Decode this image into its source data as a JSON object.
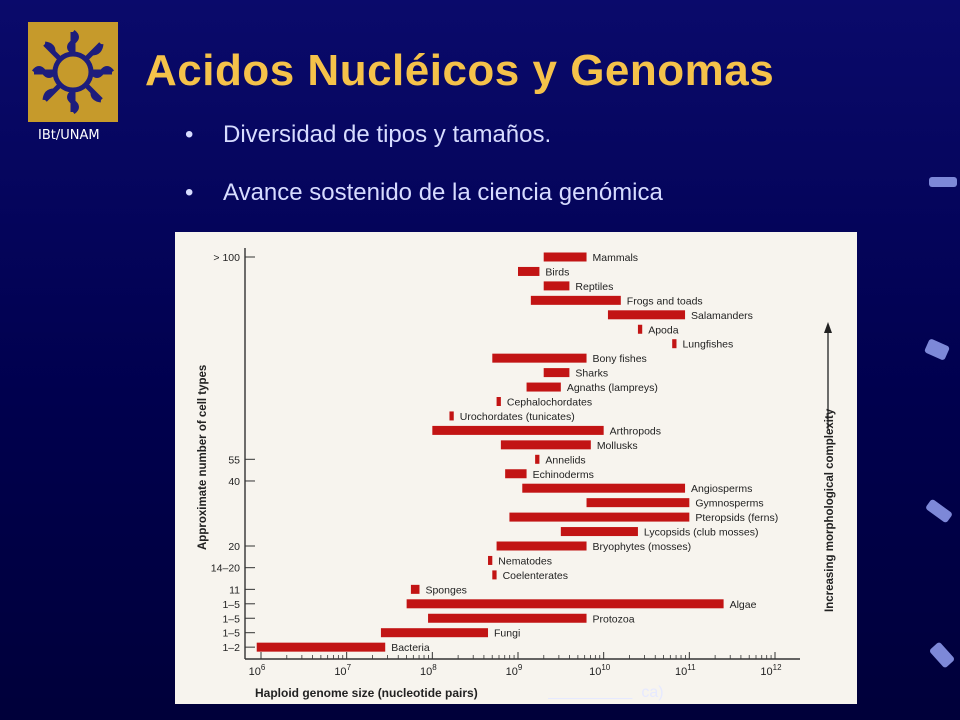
{
  "slide": {
    "logo_text": "IBt/UNAM",
    "title": "Acidos Nucléicos y Genomas",
    "bullets": [
      "Diversidad de tipos y tamaños.",
      "Avance sostenido de la ciencia genómica"
    ],
    "caption_visible_end": "ca)"
  },
  "colors": {
    "background": "#00004e",
    "title": "#f5c24a",
    "bullet_text": "#d7dcff",
    "bar": "#c21414",
    "panel": "#f7f4ee"
  },
  "chart_data": {
    "type": "bar",
    "orientation": "horizontal-range",
    "xlabel": "Haploid genome size (nucleotide pairs)",
    "ylabel": "Approximate number of cell types",
    "right_label": "Increasing morphological complexity",
    "x_ticks": [
      "10^6",
      "10^7",
      "10^8",
      "10^9",
      "10^10",
      "10^11",
      "10^12"
    ],
    "x_scale": "log",
    "xlim_log10": [
      6,
      12
    ],
    "y_tick_labels": [
      {
        "label": "> 100",
        "at": "Mammals"
      },
      {
        "label": "55",
        "at": "Annelids"
      },
      {
        "label": "40",
        "at": "Echinoderms-Angiosperms"
      },
      {
        "label": "20",
        "at": "Bryophytes (mosses)"
      },
      {
        "label": "14–20",
        "at": "Nematodes-Coelenterates"
      },
      {
        "label": "11",
        "at": "Sponges"
      },
      {
        "label": "1–5",
        "at": "Algae"
      },
      {
        "label": "1–5",
        "at": "Protozoa"
      },
      {
        "label": "1–5",
        "at": "Fungi"
      },
      {
        "label": "1–2",
        "at": "Bacteria"
      }
    ],
    "series": [
      {
        "name": "Mammals",
        "min_log10": 9.3,
        "max_log10": 9.8
      },
      {
        "name": "Birds",
        "min_log10": 9.0,
        "max_log10": 9.25
      },
      {
        "name": "Reptiles",
        "min_log10": 9.3,
        "max_log10": 9.6
      },
      {
        "name": "Frogs and toads",
        "min_log10": 9.15,
        "max_log10": 10.2
      },
      {
        "name": "Salamanders",
        "min_log10": 10.05,
        "max_log10": 10.95
      },
      {
        "name": "Apoda",
        "min_log10": 10.4,
        "max_log10": 10.45
      },
      {
        "name": "Lungfishes",
        "min_log10": 10.8,
        "max_log10": 10.85
      },
      {
        "name": "Bony fishes",
        "min_log10": 8.7,
        "max_log10": 9.8
      },
      {
        "name": "Sharks",
        "min_log10": 9.3,
        "max_log10": 9.6
      },
      {
        "name": "Agnaths (lampreys)",
        "min_log10": 9.1,
        "max_log10": 9.5
      },
      {
        "name": "Cephalochordates",
        "min_log10": 8.75,
        "max_log10": 8.8
      },
      {
        "name": "Urochordates (tunicates)",
        "min_log10": 8.2,
        "max_log10": 8.25
      },
      {
        "name": "Arthropods",
        "min_log10": 8.0,
        "max_log10": 10.0
      },
      {
        "name": "Mollusks",
        "min_log10": 8.8,
        "max_log10": 9.85
      },
      {
        "name": "Annelids",
        "min_log10": 9.2,
        "max_log10": 9.25
      },
      {
        "name": "Echinoderms",
        "min_log10": 8.85,
        "max_log10": 9.1
      },
      {
        "name": "Angiosperms",
        "min_log10": 9.05,
        "max_log10": 10.95
      },
      {
        "name": "Gymnosperms",
        "min_log10": 9.8,
        "max_log10": 11.0
      },
      {
        "name": "Pteropsids (ferns)",
        "min_log10": 8.9,
        "max_log10": 11.0
      },
      {
        "name": "Lycopsids (club mosses)",
        "min_log10": 9.5,
        "max_log10": 10.4
      },
      {
        "name": "Bryophytes (mosses)",
        "min_log10": 8.75,
        "max_log10": 9.8
      },
      {
        "name": "Nematodes",
        "min_log10": 8.65,
        "max_log10": 8.7
      },
      {
        "name": "Coelenterates",
        "min_log10": 8.7,
        "max_log10": 8.75
      },
      {
        "name": "Sponges",
        "min_log10": 7.75,
        "max_log10": 7.85
      },
      {
        "name": "Algae",
        "min_log10": 7.7,
        "max_log10": 11.4
      },
      {
        "name": "Protozoa",
        "min_log10": 7.95,
        "max_log10": 9.8
      },
      {
        "name": "Fungi",
        "min_log10": 7.4,
        "max_log10": 8.65
      },
      {
        "name": "Bacteria",
        "min_log10": 5.95,
        "max_log10": 7.45
      }
    ]
  }
}
